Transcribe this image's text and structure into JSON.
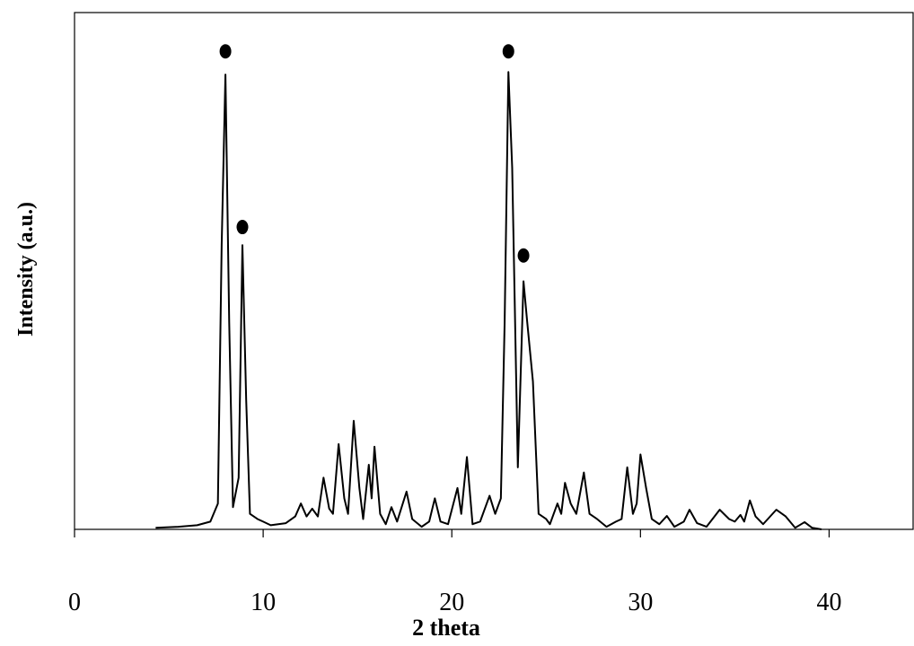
{
  "chart_data": {
    "type": "line",
    "xlabel": "2 theta",
    "ylabel": "Intensity (a.u.)",
    "xlim": [
      0,
      44.5
    ],
    "ylim": [
      0,
      100
    ],
    "xticks": [
      0,
      10,
      20,
      30,
      40
    ],
    "x": [
      4.3,
      5.5,
      6.5,
      7.2,
      7.6,
      7.8,
      8.0,
      8.2,
      8.4,
      8.7,
      8.9,
      9.1,
      9.3,
      9.7,
      10.0,
      10.4,
      11.2,
      11.7,
      12.0,
      12.3,
      12.6,
      12.9,
      13.2,
      13.5,
      13.7,
      14.0,
      14.3,
      14.5,
      14.8,
      15.1,
      15.3,
      15.6,
      15.75,
      15.9,
      16.2,
      16.5,
      16.8,
      17.1,
      17.6,
      17.9,
      18.4,
      18.8,
      19.1,
      19.4,
      19.8,
      20.3,
      20.5,
      20.8,
      21.1,
      21.5,
      22.0,
      22.3,
      22.6,
      22.8,
      23.0,
      23.2,
      23.5,
      23.65,
      23.8,
      24.0,
      24.3,
      24.6,
      25.0,
      25.2,
      25.6,
      25.8,
      26.0,
      26.3,
      26.6,
      27.0,
      27.3,
      27.7,
      28.2,
      28.7,
      29.0,
      29.3,
      29.6,
      29.8,
      30.0,
      30.3,
      30.6,
      31.0,
      31.4,
      31.8,
      32.3,
      32.6,
      33.0,
      33.5,
      34.2,
      34.7,
      35.0,
      35.3,
      35.5,
      35.8,
      36.1,
      36.5,
      37.2,
      37.7,
      38.2,
      38.7,
      39.1,
      39.6
    ],
    "series": [
      {
        "color": "#000000",
        "values": [
          0.3,
          0.5,
          0.8,
          1.5,
          5,
          55,
          88,
          40,
          4.3,
          10,
          55,
          25,
          3,
          2,
          1.5,
          0.8,
          1.2,
          2.5,
          5,
          2.5,
          4,
          2.5,
          10,
          4,
          3,
          16.5,
          6,
          3,
          21,
          8,
          2,
          12.5,
          6,
          16,
          3,
          1,
          4.3,
          1.5,
          7.3,
          2,
          0.5,
          1.5,
          6,
          1.5,
          1,
          8,
          3,
          14,
          1,
          1.5,
          6.5,
          3,
          6,
          40,
          88.5,
          70,
          12,
          30,
          48,
          40,
          28.6,
          3,
          2,
          1,
          5,
          3,
          9,
          5,
          3,
          11,
          3,
          2,
          0.5,
          1.5,
          2,
          12,
          3,
          5,
          14.5,
          8,
          2,
          1,
          2.6,
          0.5,
          1.5,
          3.8,
          1.2,
          0.5,
          3.8,
          2,
          1.5,
          2.8,
          1.5,
          5.6,
          2.5,
          1,
          3.8,
          2.5,
          0.3,
          1.4,
          0.3,
          0
        ]
      }
    ],
    "markers": {
      "x": [
        8.0,
        8.9,
        23.0,
        23.8
      ],
      "values": [
        92.5,
        58.5,
        92.5,
        53
      ],
      "color": "#000000"
    }
  }
}
